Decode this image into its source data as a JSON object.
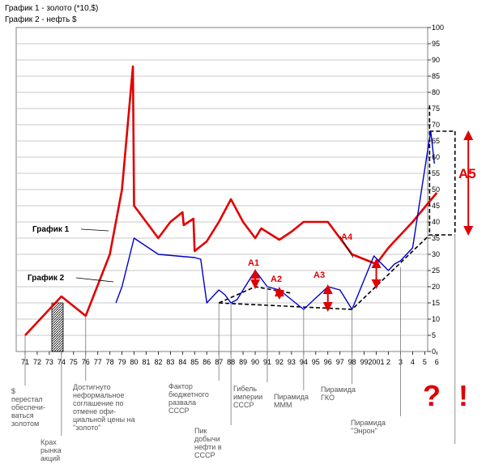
{
  "header": {
    "line1": "График 1 - золото (*10,$)",
    "line2": "График 2 - нефть $"
  },
  "chart_data": {
    "type": "line",
    "x": [
      "71",
      "72",
      "73",
      "74",
      "75",
      "76",
      "77",
      "78",
      "79",
      "80",
      "81",
      "82",
      "83",
      "84",
      "85",
      "86",
      "87",
      "88",
      "89",
      "90",
      "91",
      "92",
      "93",
      "94",
      "95",
      "96",
      "97",
      "98",
      "99",
      "2001",
      "2",
      "3",
      "4",
      "5",
      "6"
    ],
    "yticks": [
      0,
      5,
      10,
      15,
      20,
      25,
      30,
      35,
      40,
      45,
      50,
      55,
      60,
      65,
      70,
      75,
      80,
      85,
      90,
      95,
      100
    ],
    "ylim": [
      0,
      100
    ],
    "grid": true,
    "series": [
      {
        "name": "График 1",
        "color": "#e00000",
        "points": [
          [
            71,
            5
          ],
          [
            74,
            17
          ],
          [
            76,
            11
          ],
          [
            78,
            30
          ],
          [
            79,
            50
          ],
          [
            79.9,
            88
          ],
          [
            80,
            45
          ],
          [
            81,
            40
          ],
          [
            82,
            35
          ],
          [
            83,
            40
          ],
          [
            84,
            43
          ],
          [
            84.1,
            39
          ],
          [
            84.9,
            41
          ],
          [
            85,
            31
          ],
          [
            86,
            34
          ],
          [
            87,
            40
          ],
          [
            88,
            47
          ],
          [
            89,
            40
          ],
          [
            90,
            35
          ],
          [
            90.5,
            38
          ],
          [
            92,
            34.5
          ],
          [
            93,
            37
          ],
          [
            94,
            40
          ],
          [
            96,
            40
          ],
          [
            98,
            30
          ],
          [
            100,
            27
          ],
          [
            101,
            32
          ],
          [
            102,
            36
          ],
          [
            103,
            40
          ],
          [
            104,
            44.5
          ],
          [
            105,
            49
          ]
        ]
      },
      {
        "name": "График 2",
        "color": "#0000cc",
        "points": [
          [
            78.5,
            15
          ],
          [
            79,
            20
          ],
          [
            80,
            35
          ],
          [
            82,
            30
          ],
          [
            85,
            29
          ],
          [
            85.5,
            28.5
          ],
          [
            86,
            15
          ],
          [
            87,
            19
          ],
          [
            87.5,
            17.5
          ],
          [
            88,
            15
          ],
          [
            88.5,
            16
          ],
          [
            90,
            25
          ],
          [
            91,
            20
          ],
          [
            92,
            19
          ],
          [
            93,
            16
          ],
          [
            94,
            13
          ],
          [
            96,
            20
          ],
          [
            97,
            19
          ],
          [
            98,
            13
          ],
          [
            99.8,
            29.5
          ],
          [
            101,
            25
          ],
          [
            101.5,
            27
          ],
          [
            102,
            28
          ],
          [
            103,
            32
          ],
          [
            104.2,
            61
          ],
          [
            104.5,
            68
          ],
          [
            104.8,
            58
          ]
        ]
      }
    ],
    "labels": {
      "series1": "График 1",
      "series2": "График 2",
      "a1": "A1",
      "a2": "A2",
      "a3": "A3",
      "a4": "A4",
      "a5": "A5"
    },
    "notes": [
      "$ перестал обеспечи-ваться золотом",
      "Крах рынка акций",
      "Достигнуто неформальное соглашение по отмене офи-циальной цены на \"золото\"",
      "Фактор бюджетного развала СССР",
      "Пик добычи нефти в СССР",
      "Гибель империи СССР",
      "Пирамида МММ",
      "Пирамида ГКО",
      "Пирамида \"Энрон\""
    ],
    "question": "? !"
  }
}
